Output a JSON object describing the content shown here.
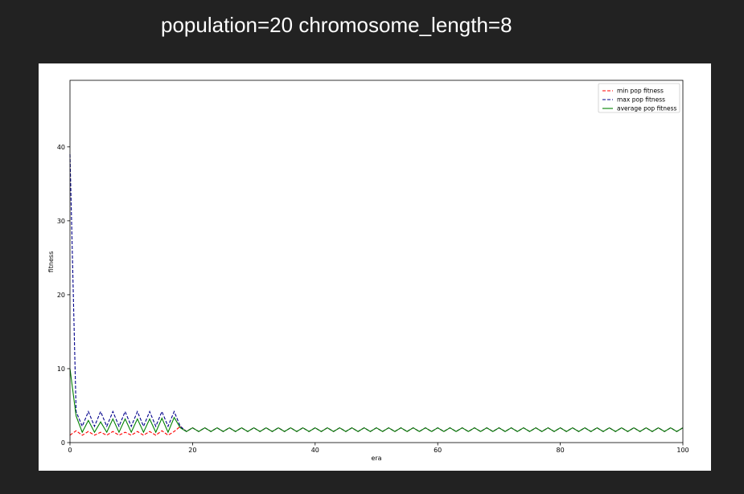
{
  "page": {
    "title": "population=20 chromosome_length=8",
    "background": "#222222",
    "card_background": "#ffffff"
  },
  "chart_data": {
    "type": "line",
    "title": "",
    "xlabel": "era",
    "ylabel": "fitness",
    "xlim": [
      0,
      100
    ],
    "ylim": [
      0,
      49
    ],
    "xticks": [
      0,
      20,
      40,
      60,
      80,
      100
    ],
    "yticks": [
      0,
      10,
      20,
      30,
      40
    ],
    "grid": false,
    "legend_position": "top-right",
    "x": [
      0,
      1,
      2,
      3,
      4,
      5,
      6,
      7,
      8,
      9,
      10,
      11,
      12,
      13,
      14,
      15,
      16,
      17,
      18,
      19,
      20,
      21,
      22,
      23,
      24,
      25,
      26,
      27,
      28,
      29,
      30,
      31,
      32,
      33,
      34,
      35,
      36,
      37,
      38,
      39,
      40,
      41,
      42,
      43,
      44,
      45,
      46,
      47,
      48,
      49,
      50,
      51,
      52,
      53,
      54,
      55,
      56,
      57,
      58,
      59,
      60,
      61,
      62,
      63,
      64,
      65,
      66,
      67,
      68,
      69,
      70,
      71,
      72,
      73,
      74,
      75,
      76,
      77,
      78,
      79,
      80,
      81,
      82,
      83,
      84,
      85,
      86,
      87,
      88,
      89,
      90,
      91,
      92,
      93,
      94,
      95,
      96,
      97,
      98,
      99,
      100
    ],
    "series": [
      {
        "name": "min pop fitness",
        "color": "#ff0000",
        "dash": "dashed",
        "values": [
          1.0,
          1.6,
          1.0,
          1.5,
          1.0,
          1.4,
          1.0,
          1.5,
          1.0,
          1.4,
          1.0,
          1.5,
          1.0,
          1.5,
          1.0,
          1.6,
          1.0,
          1.5,
          2.2,
          1.5,
          2.0,
          1.5,
          2.0,
          1.5,
          2.0,
          1.5,
          2.0,
          1.5,
          2.0,
          1.5,
          2.0,
          1.5,
          2.0,
          1.5,
          2.0,
          1.5,
          2.0,
          1.5,
          2.0,
          1.5,
          2.0,
          1.5,
          2.0,
          1.5,
          2.0,
          1.5,
          2.0,
          1.5,
          2.0,
          1.5,
          2.0,
          1.5,
          2.0,
          1.5,
          2.0,
          1.5,
          2.0,
          1.5,
          2.0,
          1.5,
          2.0,
          1.5,
          2.0,
          1.5,
          2.0,
          1.5,
          2.0,
          1.5,
          2.0,
          1.5,
          2.0,
          1.5,
          2.0,
          1.5,
          2.0,
          1.5,
          2.0,
          1.5,
          2.0,
          1.5,
          2.0,
          1.5,
          2.0,
          1.5,
          2.0,
          1.5,
          2.0,
          1.5,
          2.0,
          1.5,
          2.0,
          1.5,
          2.0,
          1.5,
          2.0,
          1.5,
          2.0,
          1.5,
          2.0,
          1.5,
          2.0
        ]
      },
      {
        "name": "max pop fitness",
        "color": "#00008b",
        "dash": "dashed",
        "values": [
          39.0,
          4.2,
          2.2,
          4.2,
          2.2,
          4.2,
          2.2,
          4.2,
          2.2,
          4.2,
          2.2,
          4.2,
          2.2,
          4.2,
          2.2,
          4.2,
          2.2,
          4.2,
          2.2,
          1.5,
          2.0,
          1.5,
          2.0,
          1.5,
          2.0,
          1.5,
          2.0,
          1.5,
          2.0,
          1.5,
          2.0,
          1.5,
          2.0,
          1.5,
          2.0,
          1.5,
          2.0,
          1.5,
          2.0,
          1.5,
          2.0,
          1.5,
          2.0,
          1.5,
          2.0,
          1.5,
          2.0,
          1.5,
          2.0,
          1.5,
          2.0,
          1.5,
          2.0,
          1.5,
          2.0,
          1.5,
          2.0,
          1.5,
          2.0,
          1.5,
          2.0,
          1.5,
          2.0,
          1.5,
          2.0,
          1.5,
          2.0,
          1.5,
          2.0,
          1.5,
          2.0,
          1.5,
          2.0,
          1.5,
          2.0,
          1.5,
          2.0,
          1.5,
          2.0,
          1.5,
          2.0,
          1.5,
          2.0,
          1.5,
          2.0,
          1.5,
          2.0,
          1.5,
          2.0,
          1.5,
          2.0,
          1.5,
          2.0,
          1.5,
          2.0,
          1.5,
          2.0,
          1.5,
          2.0,
          1.5,
          2.0
        ]
      },
      {
        "name": "average pop fitness",
        "color": "#008000",
        "dash": "solid",
        "values": [
          10.0,
          3.6,
          1.4,
          3.0,
          1.4,
          2.8,
          1.4,
          3.2,
          1.4,
          3.2,
          1.4,
          3.2,
          1.4,
          3.2,
          1.4,
          3.3,
          1.4,
          3.4,
          2.0,
          1.5,
          2.0,
          1.5,
          2.0,
          1.5,
          2.0,
          1.5,
          2.0,
          1.5,
          2.0,
          1.5,
          2.0,
          1.5,
          2.0,
          1.5,
          2.0,
          1.5,
          2.0,
          1.5,
          2.0,
          1.5,
          2.0,
          1.5,
          2.0,
          1.5,
          2.0,
          1.5,
          2.0,
          1.5,
          2.0,
          1.5,
          2.0,
          1.5,
          2.0,
          1.5,
          2.0,
          1.5,
          2.0,
          1.5,
          2.0,
          1.5,
          2.0,
          1.5,
          2.0,
          1.5,
          2.0,
          1.5,
          2.0,
          1.5,
          2.0,
          1.5,
          2.0,
          1.5,
          2.0,
          1.5,
          2.0,
          1.5,
          2.0,
          1.5,
          2.0,
          1.5,
          2.0,
          1.5,
          2.0,
          1.5,
          2.0,
          1.5,
          2.0,
          1.5,
          2.0,
          1.5,
          2.0,
          1.5,
          2.0,
          1.5,
          2.0,
          1.5,
          2.0,
          1.5,
          2.0,
          1.5,
          2.0
        ]
      }
    ]
  }
}
